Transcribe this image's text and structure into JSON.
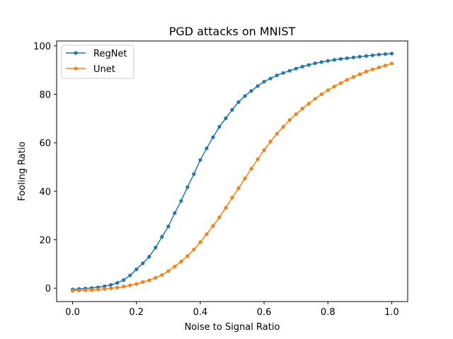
{
  "chart_data": {
    "type": "line",
    "title": "PGD attacks on MNIST",
    "xlabel": "Noise to Signal Ratio",
    "ylabel": "Fooling Ratio",
    "xlim": [
      -0.05,
      1.05
    ],
    "ylim": [
      -5.5,
      102
    ],
    "xticks": [
      0.0,
      0.2,
      0.4,
      0.6,
      0.8,
      1.0
    ],
    "xtick_labels": [
      "0.0",
      "0.2",
      "0.4",
      "0.6",
      "0.8",
      "1.0"
    ],
    "yticks": [
      0,
      20,
      40,
      60,
      80,
      100
    ],
    "ytick_labels": [
      "0",
      "20",
      "40",
      "60",
      "80",
      "100"
    ],
    "legend_position": "top-left",
    "grid": false,
    "x": [
      0.0,
      0.02,
      0.04,
      0.06,
      0.08,
      0.1,
      0.12,
      0.14,
      0.16,
      0.18,
      0.2,
      0.22,
      0.24,
      0.26,
      0.28,
      0.3,
      0.32,
      0.34,
      0.36,
      0.38,
      0.4,
      0.42,
      0.44,
      0.46,
      0.48,
      0.5,
      0.52,
      0.54,
      0.56,
      0.58,
      0.6,
      0.62,
      0.64,
      0.66,
      0.68,
      0.7,
      0.72,
      0.74,
      0.76,
      0.78,
      0.8,
      0.82,
      0.84,
      0.86,
      0.88,
      0.9,
      0.92,
      0.94,
      0.96,
      0.98,
      1.0
    ],
    "series": [
      {
        "name": "RegNet",
        "color": "#1f77b4",
        "values": [
          -0.5,
          -0.3,
          -0.1,
          0.1,
          0.4,
          0.8,
          1.4,
          2.2,
          3.4,
          5.3,
          7.8,
          10.3,
          13.0,
          16.8,
          21.2,
          25.5,
          31.0,
          36.0,
          41.7,
          47.1,
          52.9,
          57.7,
          62.3,
          66.6,
          70.1,
          73.6,
          76.8,
          79.3,
          81.4,
          83.4,
          85.2,
          86.5,
          87.8,
          88.8,
          89.7,
          90.6,
          91.4,
          92.1,
          92.8,
          93.3,
          93.8,
          94.2,
          94.6,
          94.9,
          95.2,
          95.5,
          95.8,
          96.1,
          96.4,
          96.6,
          96.8
        ]
      },
      {
        "name": "Unet",
        "color": "#ff7f0e",
        "values": [
          -1.0,
          -0.9,
          -0.8,
          -0.7,
          -0.5,
          -0.3,
          0.0,
          0.3,
          0.7,
          1.2,
          1.8,
          2.6,
          3.3,
          4.3,
          5.5,
          7.1,
          9.0,
          11.0,
          13.3,
          16.0,
          19.0,
          22.3,
          25.7,
          29.3,
          33.2,
          37.4,
          41.3,
          45.3,
          49.3,
          53.2,
          57.0,
          60.5,
          63.7,
          66.6,
          69.4,
          71.8,
          74.1,
          76.2,
          78.2,
          80.0,
          81.7,
          83.2,
          84.6,
          86.0,
          87.2,
          88.3,
          89.4,
          90.3,
          91.1,
          91.9,
          92.7
        ]
      }
    ]
  }
}
